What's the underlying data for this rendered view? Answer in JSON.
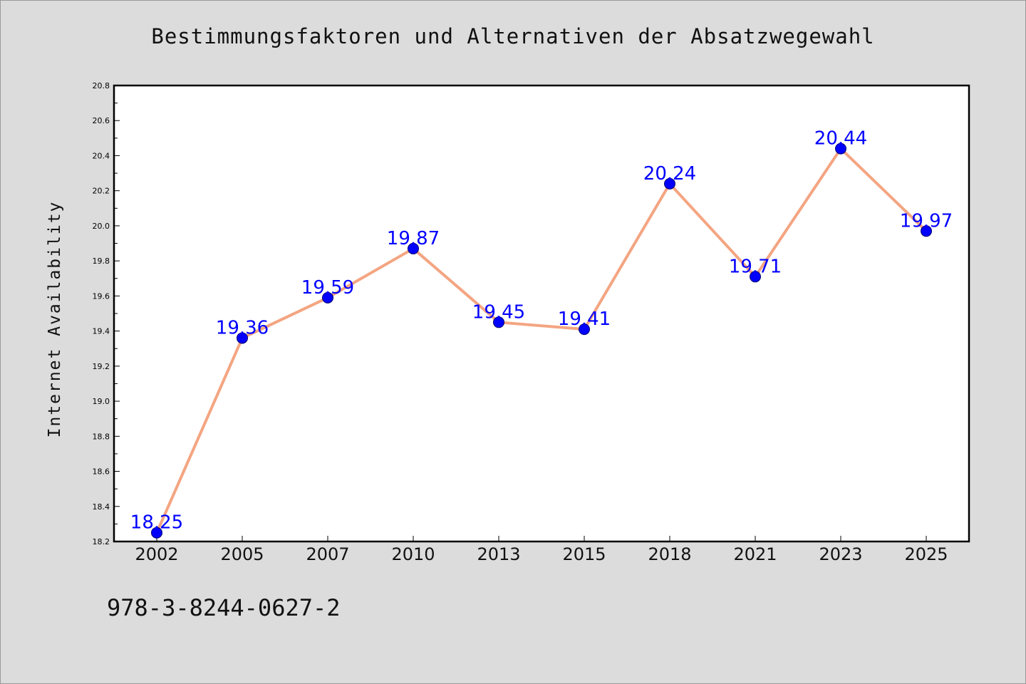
{
  "chart_data": {
    "type": "line",
    "title": "Bestimmungsfaktoren und Alternativen der Absatzwegewahl",
    "xlabel": "",
    "ylabel": "Internet Availability",
    "categories": [
      "2002",
      "2005",
      "2007",
      "2010",
      "2013",
      "2015",
      "2018",
      "2021",
      "2023",
      "2025"
    ],
    "series": [
      {
        "values": [
          18.25,
          19.36,
          19.59,
          19.87,
          19.45,
          19.41,
          20.24,
          19.71,
          20.44,
          19.97
        ],
        "data_labels": [
          "18.25",
          "19.36",
          "19.59",
          "19.87",
          "19.45",
          "19.41",
          "20.24",
          "19.71",
          "20.44",
          "19.97"
        ],
        "line_color": "#f4a582",
        "marker_color": "#0000ff"
      }
    ],
    "ylim": [
      18.2,
      20.8
    ],
    "y_ticks": [
      "18.2",
      "18.4",
      "18.6",
      "18.8",
      "19.0",
      "19.2",
      "19.4",
      "19.6",
      "19.8",
      "20.0",
      "20.2",
      "20.4",
      "20.6",
      "20.8"
    ],
    "grid": false,
    "legend": "none"
  },
  "footer": {
    "isbn": "978-3-8244-0627-2"
  }
}
